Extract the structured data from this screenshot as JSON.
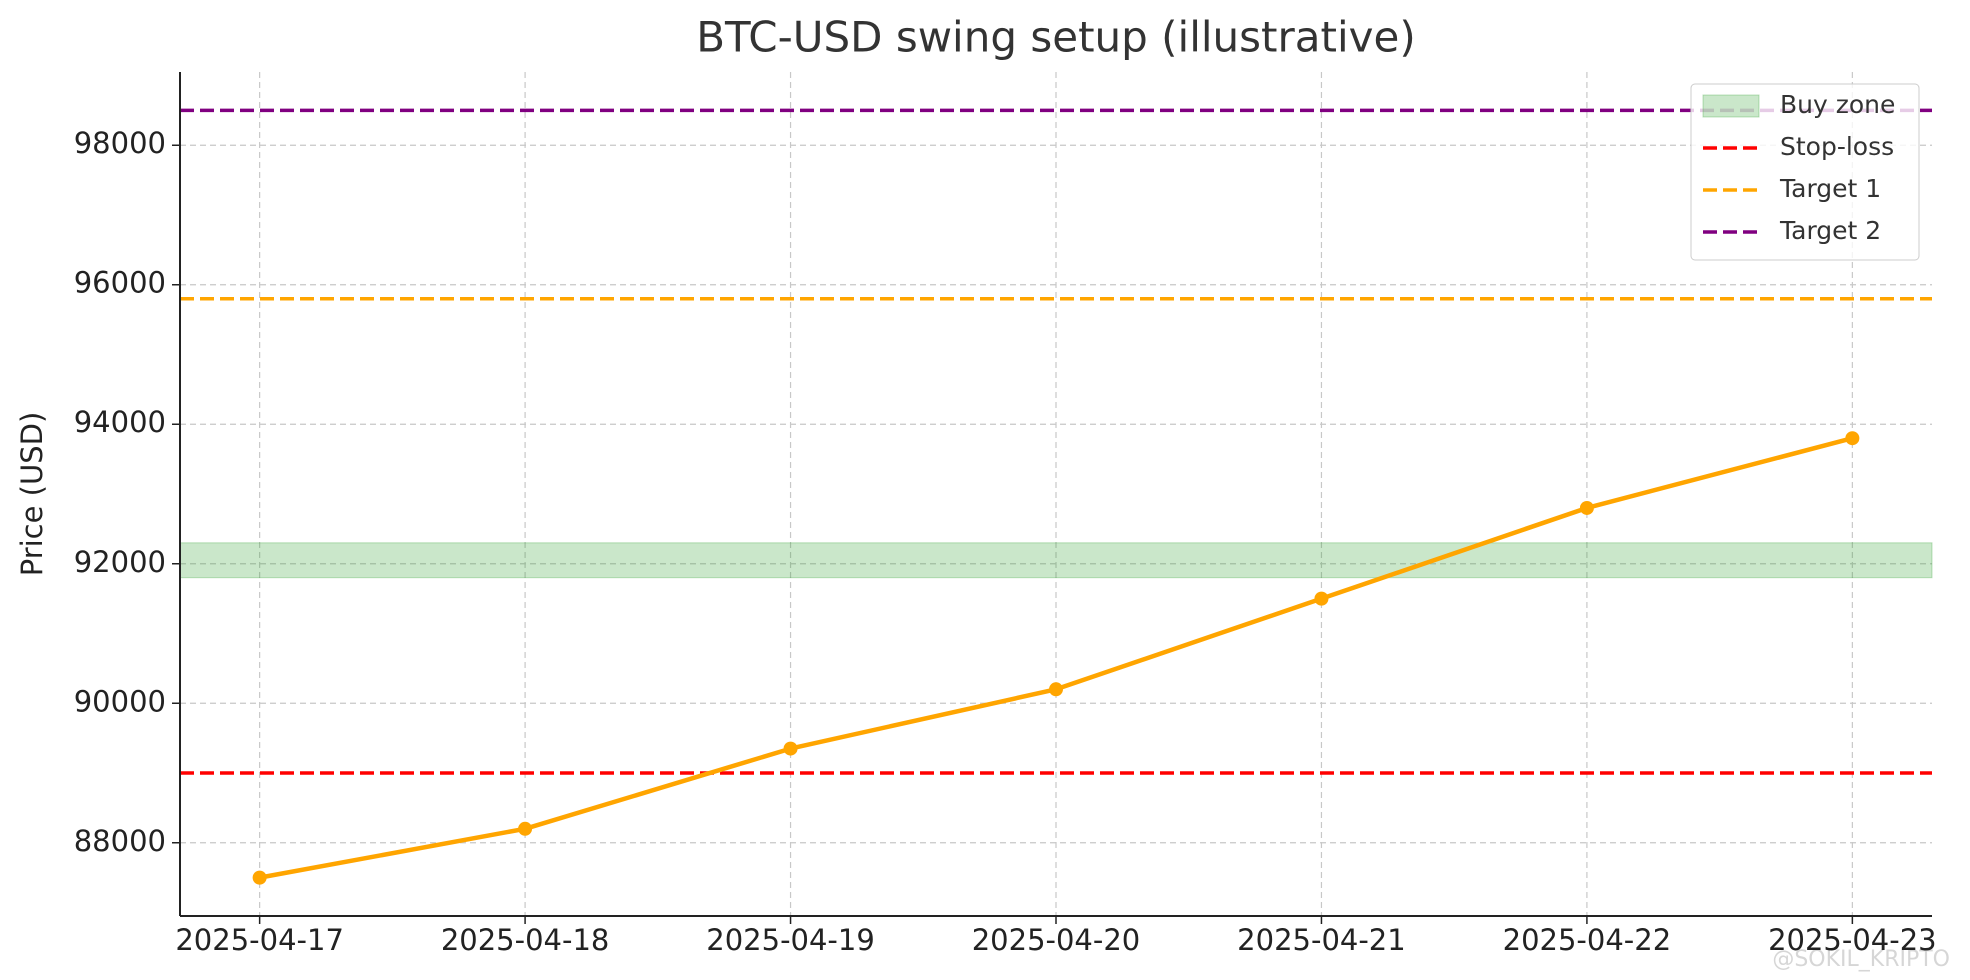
{
  "chart_data": {
    "type": "line",
    "title": "BTC-USD swing setup (illustrative)",
    "y_label": "Price (USD)",
    "categories": [
      "2025-04-17",
      "2025-04-18",
      "2025-04-19",
      "2025-04-20",
      "2025-04-21",
      "2025-04-22",
      "2025-04-23"
    ],
    "values": [
      87500,
      88200,
      89350,
      90200,
      91500,
      92800,
      93800
    ],
    "color": "#ffa500",
    "zone": {
      "name": "Buy zone",
      "range": [
        91800,
        92300
      ],
      "color": "#2ca02c"
    },
    "levels": [
      {
        "name": "Stop-loss",
        "value": 89000,
        "color": "#ff0000"
      },
      {
        "name": "Target 1",
        "value": 95800,
        "color": "#ffa500"
      },
      {
        "name": "Target 2",
        "value": 98500,
        "color": "#800080"
      }
    ],
    "ylim": [
      86950,
      99050
    ],
    "yticks": [
      88000,
      90000,
      92000,
      94000,
      96000,
      98000
    ],
    "grid": true,
    "legend": "upper right",
    "watermark": "@SOKIL_KRIPTO"
  }
}
